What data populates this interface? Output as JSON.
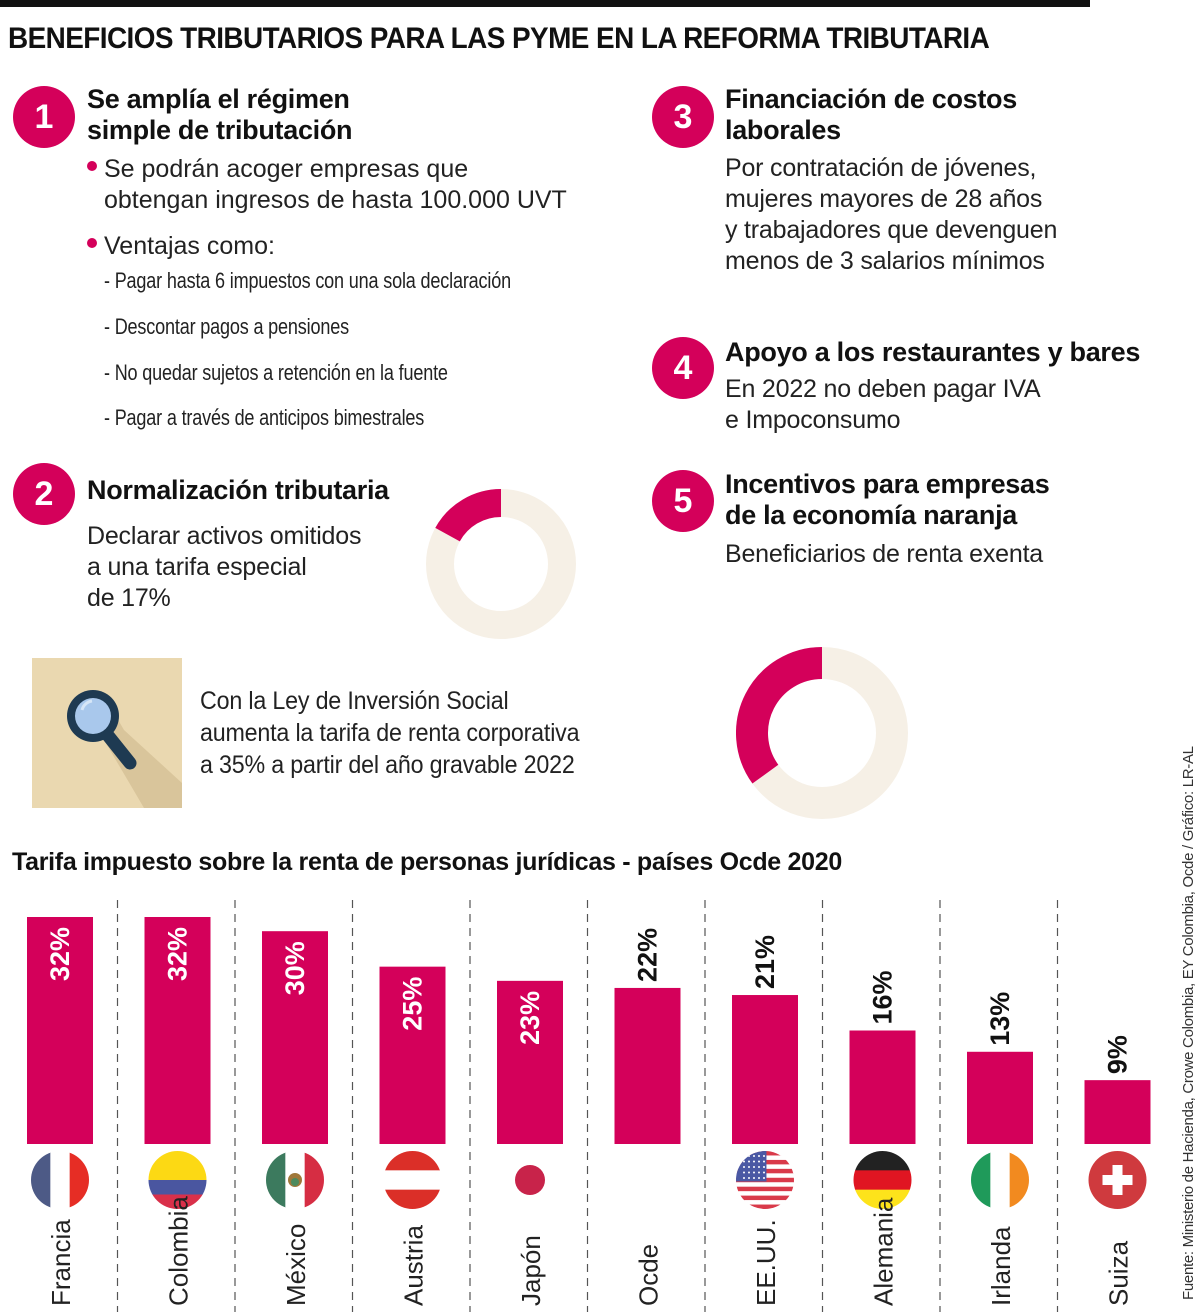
{
  "title": "BENEFICIOS TRIBUTARIOS PARA LAS PYME EN LA REFORMA TRIBUTARIA",
  "accent_color": "#d4005a",
  "ring_bg_color": "#f6f0e6",
  "sections": [
    {
      "number": "1",
      "heading_lines": [
        "Se amplía el régimen",
        "simple de tributación"
      ],
      "bullets": [
        {
          "lines": [
            "Se podrán acoger empresas que",
            "obtengan ingresos de hasta 100.000 UVT"
          ]
        },
        {
          "lines": [
            "Ventajas como:"
          ]
        }
      ],
      "sub_items": [
        "- Pagar hasta 6 impuestos con una sola declaración",
        "- Descontar pagos a pensiones",
        "- No quedar sujetos a retención en la fuente",
        "- Pagar a través de anticipos bimestrales"
      ]
    },
    {
      "number": "2",
      "heading_lines": [
        "Normalización tributaria"
      ],
      "body_lines": [
        "Declarar activos omitidos",
        "a una tarifa especial",
        "de 17%"
      ],
      "donut_value_percent": 17
    },
    {
      "number": "3",
      "heading_lines": [
        "Financiación de costos",
        "laborales"
      ],
      "body_lines": [
        "Por contratación de jóvenes,",
        "mujeres mayores de 28 años",
        "y trabajadores que devenguen",
        "menos de 3 salarios mínimos"
      ]
    },
    {
      "number": "4",
      "heading_lines": [
        "Apoyo a los restaurantes y bares"
      ],
      "body_lines": [
        "En 2022 no deben pagar IVA",
        "e Impoconsumo"
      ]
    },
    {
      "number": "5",
      "heading_lines": [
        "Incentivos para empresas",
        "de la economía naranja"
      ],
      "body_lines": [
        "Beneficiarios de renta exenta"
      ]
    }
  ],
  "callout": {
    "icon": "magnifier-icon",
    "lines": [
      "Con la Ley de Inversión Social",
      "aumenta la tarifa de renta corporativa",
      "a 35% a partir del año gravable 2022"
    ],
    "donut_value_percent": 35
  },
  "chart_data": {
    "type": "bar",
    "title": "Tarifa impuesto sobre la renta de personas jurídicas - países Ocde 2020",
    "xlabel": "",
    "ylabel": "",
    "ylim": [
      0,
      32
    ],
    "categories": [
      "Francia",
      "Colombia",
      "México",
      "Austria",
      "Japón",
      "Ocde",
      "EE.UU.",
      "Alemania",
      "Irlanda",
      "Suiza"
    ],
    "values": [
      32,
      32,
      30,
      25,
      23,
      22,
      21,
      16,
      13,
      9
    ],
    "data_labels": [
      "32%",
      "32%",
      "30%",
      "25%",
      "23%",
      "22%",
      "21%",
      "16%",
      "13%",
      "9%"
    ],
    "flags": [
      "france-flag-icon",
      "colombia-flag-icon",
      "mexico-flag-icon",
      "austria-flag-icon",
      "japan-flag-icon",
      "",
      "usa-flag-icon",
      "germany-flag-icon",
      "ireland-flag-icon",
      "switzerland-flag-icon"
    ],
    "bar_color": "#d4005a",
    "grid": false,
    "separators": "dashed vertical"
  },
  "source": "Fuente: Ministerio de Hacienda, Crowe Colombia, EY Colombia, Ocde / Gráfico: LR-AL"
}
